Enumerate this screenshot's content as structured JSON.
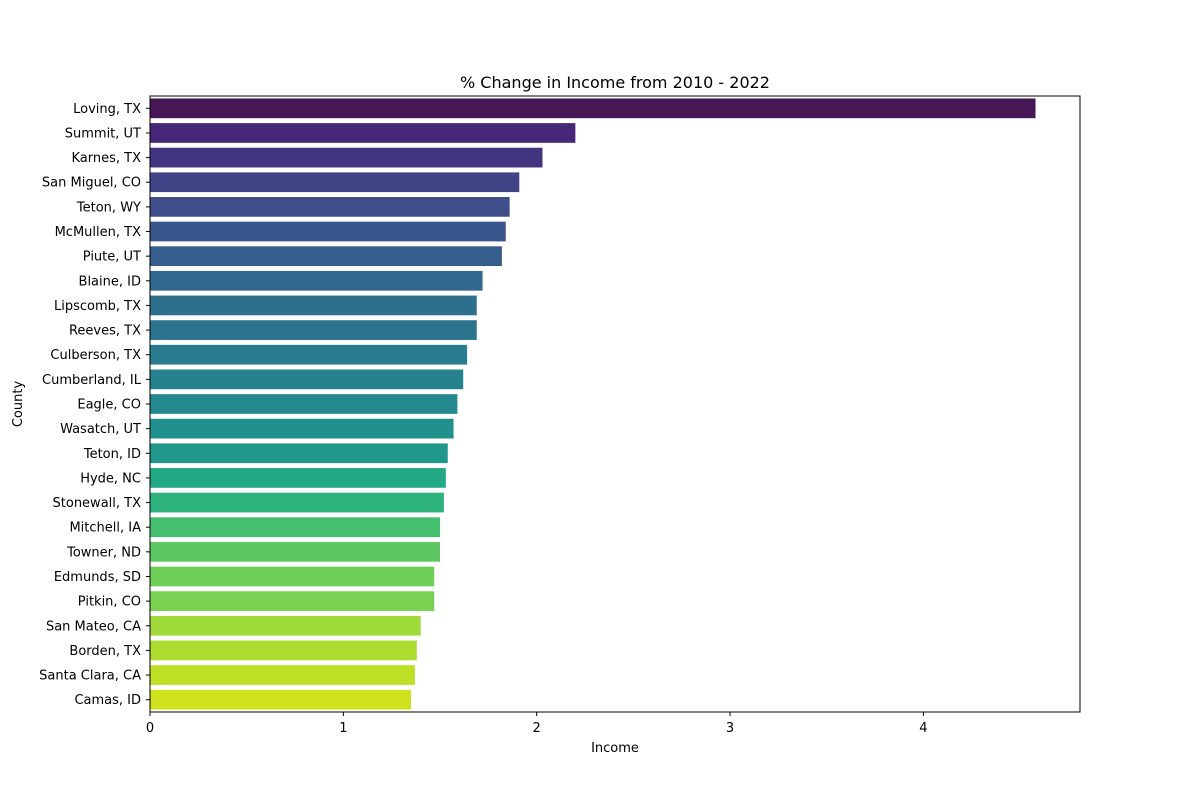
{
  "chart_data": {
    "type": "bar",
    "orientation": "horizontal",
    "title": "% Change in Income from 2010 - 2022",
    "xlabel": "Income",
    "ylabel": "County",
    "xlim": [
      0,
      4.81
    ],
    "xticks": [
      0,
      1,
      2,
      3,
      4
    ],
    "grid": false,
    "legend": "none",
    "palette": "viridis",
    "categories": [
      "Loving, TX",
      "Summit, UT",
      "Karnes, TX",
      "San Miguel, CO",
      "Teton, WY",
      "McMullen, TX",
      "Piute, UT",
      "Blaine, ID",
      "Lipscomb, TX",
      "Reeves, TX",
      "Culberson, TX",
      "Cumberland, IL",
      "Eagle, CO",
      "Wasatch, UT",
      "Teton, ID",
      "Hyde, NC",
      "Stonewall, TX",
      "Mitchell, IA",
      "Towner, ND",
      "Edmunds, SD",
      "Pitkin, CO",
      "San Mateo, CA",
      "Borden, TX",
      "Santa Clara, CA",
      "Camas, ID"
    ],
    "values": [
      4.58,
      2.2,
      2.03,
      1.91,
      1.86,
      1.84,
      1.82,
      1.72,
      1.69,
      1.69,
      1.64,
      1.62,
      1.59,
      1.57,
      1.54,
      1.53,
      1.52,
      1.5,
      1.5,
      1.47,
      1.47,
      1.4,
      1.38,
      1.37,
      1.35
    ],
    "colors": [
      "#471655",
      "#472777",
      "#433580",
      "#414487",
      "#3d4e8a",
      "#3a548c",
      "#355e8d",
      "#31688e",
      "#2e6f8e",
      "#2c738e",
      "#297b8e",
      "#26828e",
      "#23898e",
      "#20918c",
      "#1f978b",
      "#22a884",
      "#2db27d",
      "#44bf70",
      "#5dc863",
      "#6ece58",
      "#7ad151",
      "#9fda3a",
      "#addc30",
      "#bddf26",
      "#cde11d"
    ]
  }
}
